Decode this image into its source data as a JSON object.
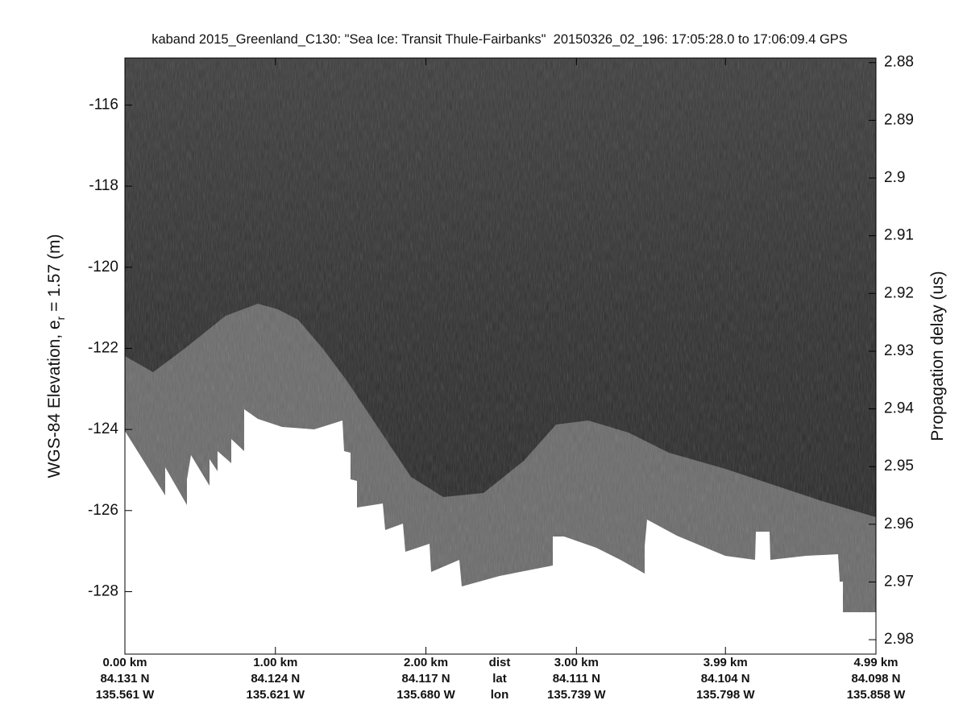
{
  "chart_data": {
    "type": "echogram",
    "title": "kaband 2015_Greenland_C130: \"Sea Ice: Transit Thule-Fairbanks\"  20150326_02_196: 17:05:28.0 to 17:06:09.4 GPS",
    "ylabel": "WGS-84 Elevation, e",
    "ylabel_sub": "r",
    "ylabel_rest": " = 1.57 (m)",
    "y2label": "Propagation delay (us)",
    "xlim": [
      0,
      4.99
    ],
    "xticks": [
      {
        "value": 0,
        "label": "0.00 km"
      },
      {
        "value": 1,
        "label": "1.00 km"
      },
      {
        "value": 2,
        "label": "2.00 km"
      },
      {
        "value": 3,
        "label": "3.00 km"
      },
      {
        "value": 3.99,
        "label": "3.99 km"
      },
      {
        "value": 4.99,
        "label": "4.99 km"
      }
    ],
    "xtick_lat": [
      "84.131 N",
      "84.124 N",
      "84.117 N",
      "84.111 N",
      "84.104 N",
      "84.098 N"
    ],
    "xtick_lon": [
      "135.561 W",
      "135.621 W",
      "135.680 W",
      "135.739 W",
      "135.798 W",
      "135.858 W"
    ],
    "row_labels": [
      "dist",
      "lat",
      "lon"
    ],
    "ylim": [
      -129.54,
      -114.84
    ],
    "yticks": [
      -128,
      -126,
      -124,
      -122,
      -120,
      -118,
      -116
    ],
    "y2lim": [
      2.9825,
      2.8792
    ],
    "y2ticks": [
      2.88,
      2.89,
      2.9,
      2.91,
      2.92,
      2.93,
      2.94,
      2.95,
      2.96,
      2.97,
      2.98
    ],
    "colormap": "gray"
  }
}
